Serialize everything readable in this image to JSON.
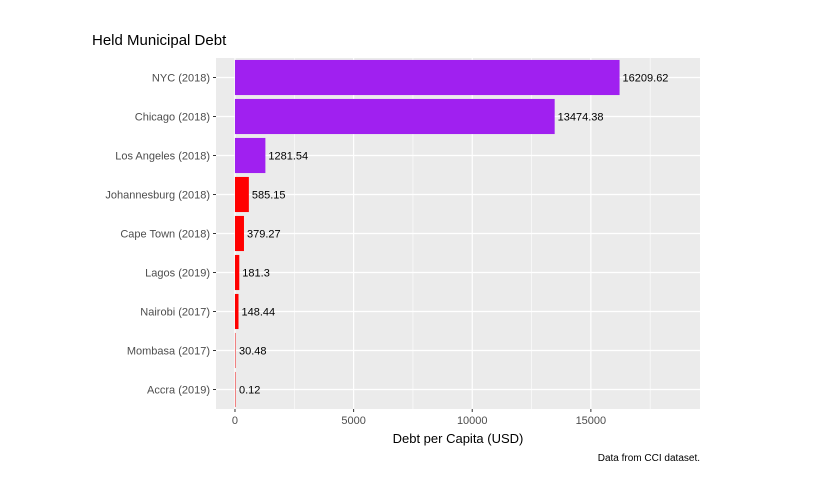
{
  "chart_data": {
    "type": "bar",
    "orientation": "horizontal",
    "title": "Held Municipal Debt",
    "xlabel": "Debt per Capita (USD)",
    "ylabel": "",
    "caption": "Data from CCI dataset.",
    "xlim": [
      -800,
      19600
    ],
    "xticks": [
      0,
      5000,
      10000,
      15000
    ],
    "xtick_labels": [
      "0",
      "5000",
      "10000",
      "15000"
    ],
    "categories": [
      "NYC (2018)",
      "Chicago (2018)",
      "Los Angeles (2018)",
      "Johannesburg (2018)",
      "Cape Town (2018)",
      "Lagos (2019)",
      "Nairobi (2017)",
      "Mombasa (2017)",
      "Accra (2019)"
    ],
    "values": [
      16209.62,
      13474.38,
      1281.54,
      585.15,
      379.27,
      181.3,
      148.44,
      30.48,
      0.12
    ],
    "value_labels": [
      "16209.62",
      "13474.38",
      "1281.54",
      "585.15",
      "379.27",
      "181.3",
      "148.44",
      "30.48",
      "0.12"
    ],
    "bar_colors": [
      "#a020f0",
      "#a020f0",
      "#a020f0",
      "#ff0000",
      "#ff0000",
      "#ff0000",
      "#ff0000",
      "#f08080",
      "#f08080"
    ],
    "panel_background": "#ebebeb",
    "grid": true,
    "legend": "none"
  }
}
